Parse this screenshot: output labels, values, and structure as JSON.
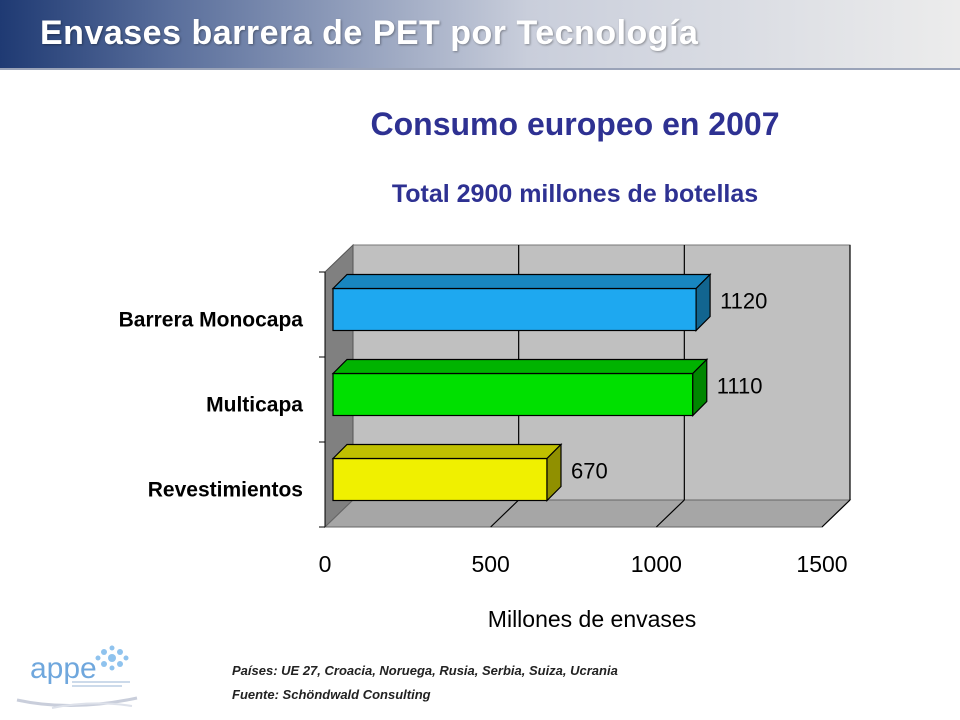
{
  "header": {
    "title": "Envases barrera de PET por Tecnología"
  },
  "title": "Consumo europeo en 2007",
  "subtitle": "Total 2900 millones de botellas",
  "chart_data": {
    "type": "bar",
    "orientation": "horizontal",
    "categories": [
      "Barrera Monocapa",
      "Multicapa",
      "Revestimientos"
    ],
    "values": [
      1120,
      1110,
      670
    ],
    "data_labels": [
      "1120",
      "1110",
      "670"
    ],
    "colors": [
      "#1ea8f0",
      "#00e000",
      "#f0f000"
    ],
    "xlabel": "Millones de envases",
    "ylabel": "",
    "xlim": [
      0,
      1500
    ],
    "xticks": [
      0,
      500,
      1000,
      1500
    ],
    "grid": true,
    "style": "3d"
  },
  "footnotes": {
    "countries": "Países: UE 27, Croacia, Noruega, Rusia, Serbia, Suiza, Ucrania",
    "source": "Fuente: Schöndwald Consulting"
  },
  "logo": {
    "text": "appe"
  }
}
